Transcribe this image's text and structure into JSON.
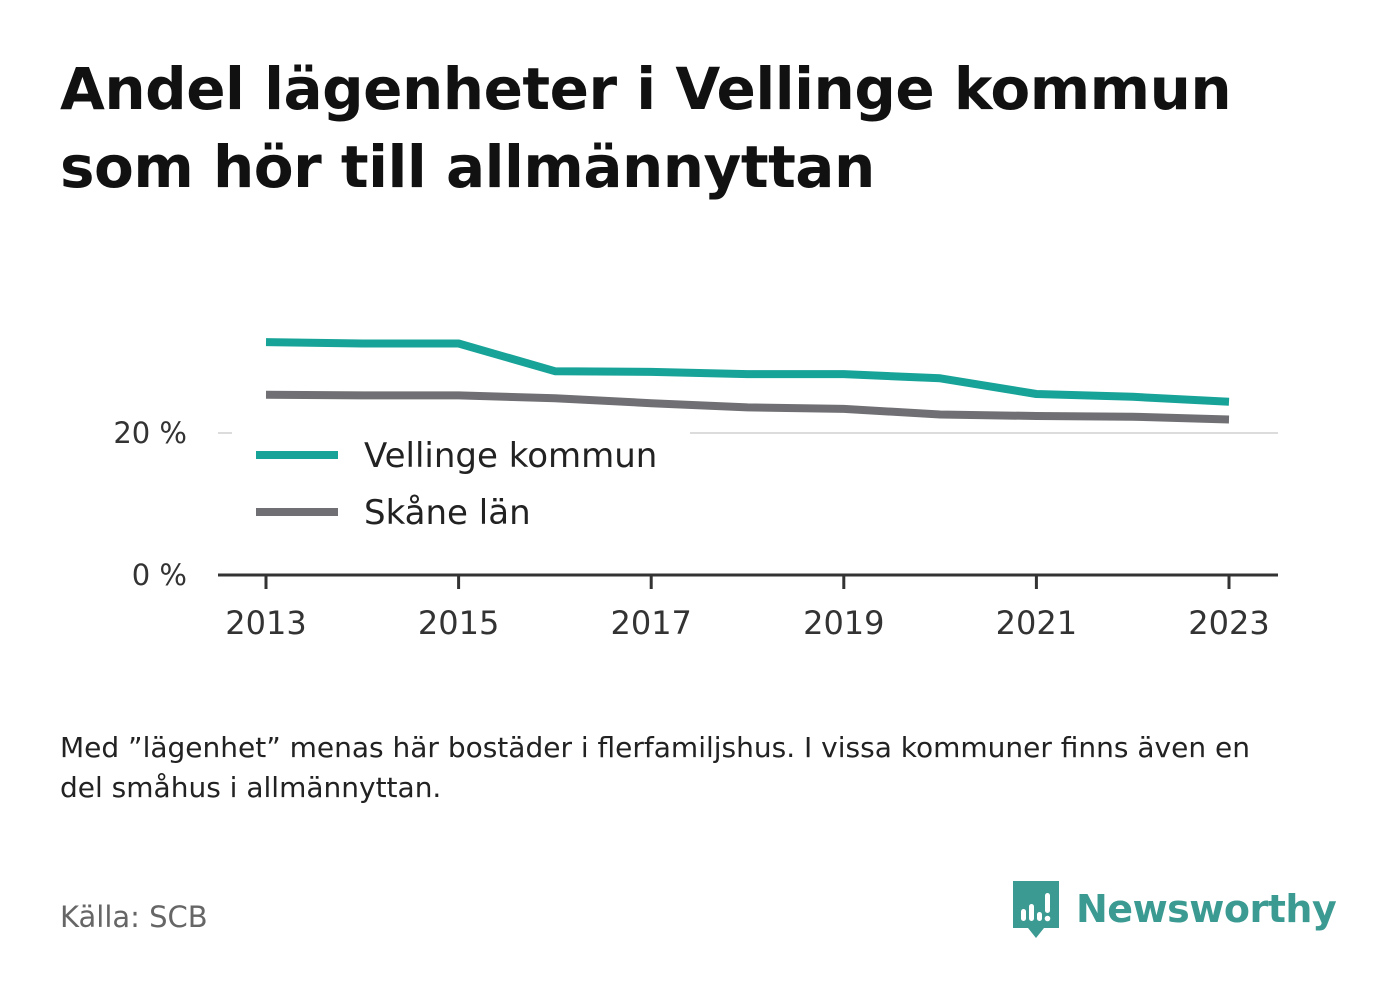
{
  "title": "Andel lägenheter i Vellinge kommun som hör till allmännyttan",
  "note": "Med ”lägenhet” menas här bostäder i flerfamiljshus. I vissa kommuner finns även en del småhus i allmännyttan.",
  "source": "Källa: SCB",
  "brand": {
    "name": "Newsworthy",
    "icon": "newsworthy-logo-icon",
    "color": "#3b9b92"
  },
  "chart_data": {
    "type": "line",
    "x": [
      2013,
      2014,
      2015,
      2016,
      2017,
      2018,
      2019,
      2020,
      2021,
      2022,
      2023
    ],
    "x_tick_labels": [
      "2013",
      "2015",
      "2017",
      "2019",
      "2021",
      "2023"
    ],
    "y_tick_labels": [
      "0 %",
      "20 %"
    ],
    "y_ticks": [
      0,
      20
    ],
    "ylim": [
      0,
      40
    ],
    "grid": true,
    "legend_position": "bottom-left",
    "series": [
      {
        "name": "Vellinge kommun",
        "color": "#17a398",
        "values": [
          32.8,
          32.6,
          32.6,
          28.7,
          28.6,
          28.3,
          28.3,
          27.7,
          25.5,
          25.1,
          24.4
        ]
      },
      {
        "name": "Skåne län",
        "color": "#707074",
        "values": [
          25.4,
          25.3,
          25.3,
          24.9,
          24.2,
          23.6,
          23.4,
          22.6,
          22.4,
          22.3,
          21.9
        ]
      }
    ]
  }
}
